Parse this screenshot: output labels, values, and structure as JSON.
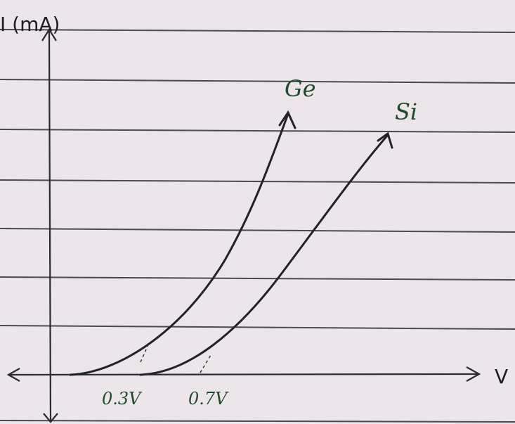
{
  "axes": {
    "y_label": "I (mA)",
    "x_label": "V"
  },
  "curves": [
    {
      "label": "Ge",
      "threshold": "0.3V"
    },
    {
      "label": "Si",
      "threshold": "0.7V"
    }
  ]
}
